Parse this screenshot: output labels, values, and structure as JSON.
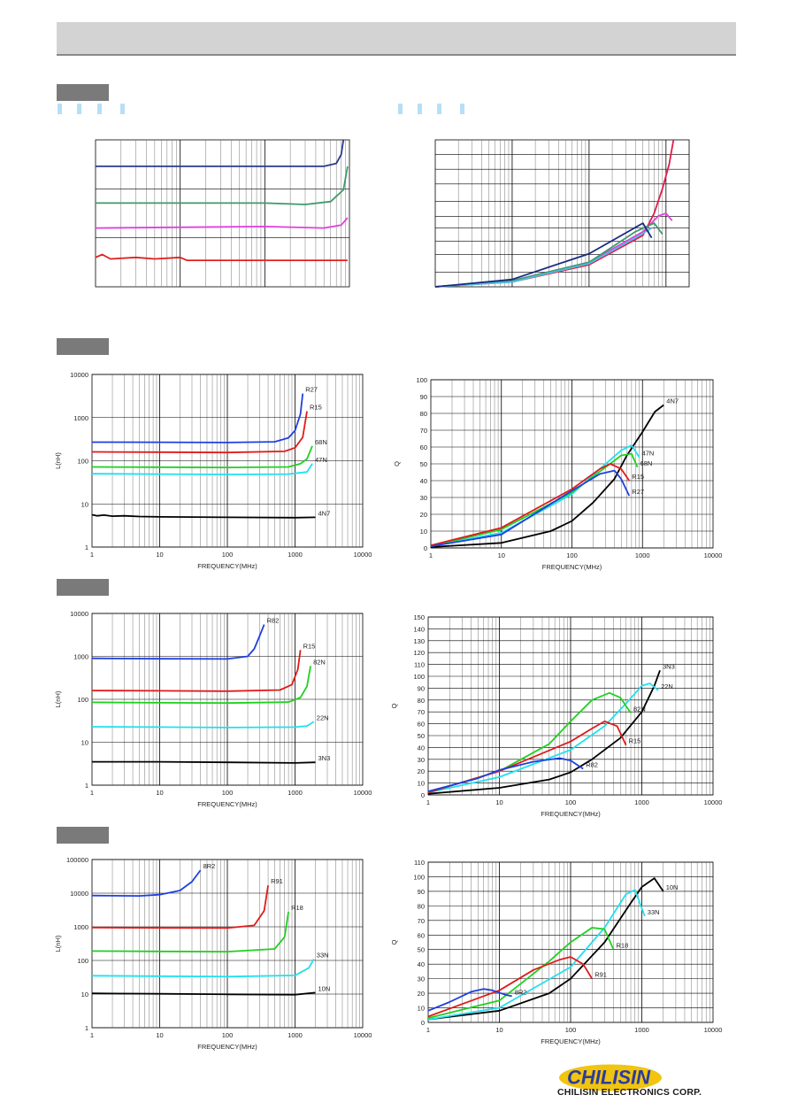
{
  "header": {},
  "brand": {
    "logo_text": "CHILISIN",
    "company": "CHILISIN ELECTRONICS CORP.",
    "colors": {
      "blue": "#2b3c9e",
      "yellow": "#f1c40f"
    }
  },
  "chart_data": [
    {
      "id": "c1",
      "type": "line",
      "title": "",
      "xlabel": "",
      "ylabel": "",
      "scale": "log-linear-grid",
      "series": [
        {
          "name": "",
          "color": "#2b3a8f",
          "x": [
            1,
            100,
            500,
            700,
            800,
            850
          ],
          "y": [
            0.82,
            0.82,
            0.82,
            0.84,
            0.9,
            1.0
          ]
        },
        {
          "name": "",
          "color": "#3d9a6b",
          "x": [
            1,
            100,
            300,
            600,
            850,
            950
          ],
          "y": [
            0.57,
            0.57,
            0.56,
            0.58,
            0.66,
            0.82
          ]
        },
        {
          "name": "",
          "color": "#e040e0",
          "x": [
            1,
            100,
            500,
            800,
            950
          ],
          "y": [
            0.4,
            0.41,
            0.4,
            0.42,
            0.47
          ]
        },
        {
          "name": "",
          "color": "#e02020",
          "x": [
            1,
            1.2,
            1.5,
            3,
            5,
            10,
            12,
            20,
            100,
            950
          ],
          "y": [
            0.2,
            0.22,
            0.19,
            0.2,
            0.19,
            0.2,
            0.18,
            0.18,
            0.18,
            0.18
          ]
        }
      ]
    },
    {
      "id": "c2",
      "type": "line",
      "title": "",
      "xlabel": "",
      "ylabel": "",
      "series": [
        {
          "name": "",
          "color": "#e31b4b",
          "x": [
            1,
            10,
            100,
            500,
            700,
            900,
            1100,
            1250
          ],
          "y": [
            0,
            4,
            18,
            42,
            60,
            80,
            100,
            120
          ]
        },
        {
          "name": "",
          "color": "#e040e0",
          "x": [
            1,
            10,
            100,
            500,
            800,
            1000,
            1200
          ],
          "y": [
            0,
            5,
            20,
            45,
            58,
            60,
            54
          ]
        },
        {
          "name": "",
          "color": "#3d9a6b",
          "x": [
            1,
            10,
            100,
            400,
            700,
            900
          ],
          "y": [
            0,
            5,
            20,
            45,
            52,
            43
          ]
        },
        {
          "name": "",
          "color": "#4ac0e0",
          "x": [
            1,
            10,
            100,
            400,
            650
          ],
          "y": [
            0,
            4,
            19,
            40,
            48
          ]
        },
        {
          "name": "",
          "color": "#1a2a80",
          "x": [
            1,
            10,
            100,
            300,
            500,
            650
          ],
          "y": [
            0,
            6,
            27,
            44,
            52,
            40
          ]
        }
      ]
    },
    {
      "id": "c3",
      "type": "line",
      "xlabel": "FREQUENCY(MHz)",
      "ylabel": "L(nH)",
      "xlim": [
        1,
        10000
      ],
      "ylim": [
        1,
        10000
      ],
      "yscale": "log",
      "x_ticks": [
        "1",
        "10",
        "100",
        "1000",
        "10000"
      ],
      "y_ticks": [
        "1",
        "10",
        "100",
        "1000",
        "10000"
      ],
      "series": [
        {
          "name": "R27",
          "color": "#1f3fe0",
          "x": [
            1,
            10,
            100,
            500,
            800,
            1000,
            1200,
            1300
          ],
          "y": [
            270,
            268,
            265,
            275,
            340,
            500,
            1200,
            3600
          ]
        },
        {
          "name": "R15",
          "color": "#e01a1a",
          "x": [
            1,
            10,
            100,
            700,
            1000,
            1300,
            1500
          ],
          "y": [
            160,
            158,
            155,
            165,
            200,
            350,
            1400
          ]
        },
        {
          "name": "68N",
          "color": "#20d020",
          "x": [
            1,
            10,
            100,
            800,
            1200,
            1500,
            1800
          ],
          "y": [
            72,
            71,
            70,
            72,
            85,
            110,
            220
          ]
        },
        {
          "name": "47N",
          "color": "#20e0f0",
          "x": [
            1,
            10,
            100,
            800,
            1500,
            1800
          ],
          "y": [
            50,
            49,
            48,
            49,
            55,
            85
          ]
        },
        {
          "name": "4N7",
          "color": "#000000",
          "x": [
            1,
            1.2,
            1.5,
            2,
            3,
            5,
            10,
            100,
            1000,
            2000
          ],
          "y": [
            5.6,
            5.3,
            5.5,
            5.2,
            5.3,
            5.1,
            5.0,
            4.9,
            4.8,
            4.9
          ]
        }
      ]
    },
    {
      "id": "c4",
      "type": "line",
      "xlabel": "FREQUENCY(MHz)",
      "ylabel": "Q",
      "xlim": [
        1,
        10000
      ],
      "ylim": [
        0,
        100
      ],
      "x_ticks": [
        "1",
        "10",
        "100",
        "1000",
        "10000"
      ],
      "y_ticks": [
        "0",
        "10",
        "20",
        "30",
        "40",
        "50",
        "60",
        "70",
        "80",
        "90",
        "100"
      ],
      "series": [
        {
          "name": "4N7",
          "color": "#000000",
          "x": [
            1,
            10,
            50,
            100,
            200,
            400,
            600,
            1000,
            1500,
            2000
          ],
          "y": [
            0.5,
            3,
            10,
            16,
            27,
            41,
            55,
            69,
            81,
            85
          ]
        },
        {
          "name": "47N",
          "color": "#20e0f0",
          "x": [
            1,
            10,
            100,
            300,
            500,
            700,
            900
          ],
          "y": [
            1,
            9,
            32,
            50,
            58,
            61,
            54
          ]
        },
        {
          "name": "68N",
          "color": "#20d020",
          "x": [
            1,
            10,
            100,
            300,
            500,
            700,
            850
          ],
          "y": [
            1,
            11,
            33,
            48,
            55,
            56,
            48
          ]
        },
        {
          "name": "R15",
          "color": "#e01a1a",
          "x": [
            1,
            10,
            100,
            250,
            350,
            500,
            650
          ],
          "y": [
            1.5,
            12,
            35,
            47,
            50,
            47,
            40
          ]
        },
        {
          "name": "R27",
          "color": "#1f3fe0",
          "x": [
            1,
            10,
            100,
            250,
            400,
            500,
            650
          ],
          "y": [
            1,
            8,
            34,
            44,
            46,
            41,
            31
          ]
        }
      ]
    },
    {
      "id": "c5",
      "type": "line",
      "xlabel": "FREQUENCY(MHz)",
      "ylabel": "L(nH)",
      "xlim": [
        1,
        10000
      ],
      "ylim": [
        1,
        10000
      ],
      "yscale": "log",
      "x_ticks": [
        "1",
        "10",
        "100",
        "1000",
        "10000"
      ],
      "y_ticks": [
        "1",
        "10",
        "100",
        "1000",
        "10000"
      ],
      "series": [
        {
          "name": "R82",
          "color": "#1f3fe0",
          "x": [
            1,
            10,
            100,
            200,
            250,
            300,
            350
          ],
          "y": [
            900,
            880,
            870,
            1000,
            1500,
            3000,
            5500
          ]
        },
        {
          "name": "R15",
          "color": "#e01a1a",
          "x": [
            1,
            10,
            100,
            600,
            900,
            1100,
            1200
          ],
          "y": [
            160,
            158,
            155,
            165,
            220,
            500,
            1400
          ]
        },
        {
          "name": "82N",
          "color": "#20d020",
          "x": [
            1,
            10,
            100,
            800,
            1200,
            1500,
            1700
          ],
          "y": [
            85,
            83,
            82,
            86,
            110,
            200,
            600
          ]
        },
        {
          "name": "22N",
          "color": "#20e0f0",
          "x": [
            1,
            10,
            100,
            1000,
            1500,
            1900
          ],
          "y": [
            23,
            22.5,
            22,
            22.5,
            24,
            30
          ]
        },
        {
          "name": "3N3",
          "color": "#000000",
          "x": [
            1,
            10,
            100,
            1000,
            2000
          ],
          "y": [
            3.5,
            3.5,
            3.4,
            3.3,
            3.4
          ]
        }
      ]
    },
    {
      "id": "c6",
      "type": "line",
      "xlabel": "FREQUENCY(MHz)",
      "ylabel": "Q",
      "xlim": [
        1,
        10000
      ],
      "ylim": [
        0,
        150
      ],
      "x_ticks": [
        "1",
        "10",
        "100",
        "1000",
        "10000"
      ],
      "y_ticks": [
        "0",
        "10",
        "20",
        "30",
        "40",
        "50",
        "60",
        "70",
        "80",
        "90",
        "100",
        "110",
        "120",
        "130",
        "140",
        "150"
      ],
      "series": [
        {
          "name": "3N3",
          "color": "#000000",
          "x": [
            1,
            10,
            50,
            100,
            200,
            500,
            1000,
            1500,
            1800
          ],
          "y": [
            1,
            6,
            13,
            19,
            30,
            48,
            70,
            92,
            105
          ]
        },
        {
          "name": "22N",
          "color": "#20e0f0",
          "x": [
            1,
            10,
            100,
            300,
            600,
            1000,
            1300,
            1700
          ],
          "y": [
            2,
            15,
            38,
            58,
            77,
            92,
            94,
            88
          ]
        },
        {
          "name": "82N",
          "color": "#20d020",
          "x": [
            1,
            10,
            50,
            100,
            200,
            350,
            500,
            700
          ],
          "y": [
            2,
            20,
            43,
            62,
            80,
            86,
            82,
            69
          ]
        },
        {
          "name": "R15",
          "color": "#e01a1a",
          "x": [
            1,
            10,
            100,
            200,
            300,
            450,
            600
          ],
          "y": [
            2,
            20,
            45,
            56,
            62,
            58,
            42
          ]
        },
        {
          "name": "R82",
          "color": "#1f3fe0",
          "x": [
            1,
            5,
            10,
            30,
            70,
            100,
            150
          ],
          "y": [
            3,
            14,
            21,
            28,
            31,
            29,
            22
          ]
        }
      ]
    },
    {
      "id": "c7",
      "type": "line",
      "xlabel": "FREQUENCY(MHz)",
      "ylabel": "L(nH)",
      "xlim": [
        1,
        10000
      ],
      "ylim": [
        1,
        100000
      ],
      "yscale": "log",
      "x_ticks": [
        "1",
        "10",
        "100",
        "1000",
        "10000"
      ],
      "y_ticks": [
        "1",
        "10",
        "100",
        "1000",
        "10000",
        "100000"
      ],
      "series": [
        {
          "name": "8R2",
          "color": "#1f3fe0",
          "x": [
            1,
            5,
            10,
            20,
            30,
            40
          ],
          "y": [
            8500,
            8300,
            9000,
            12000,
            22000,
            48000
          ]
        },
        {
          "name": "R91",
          "color": "#e01a1a",
          "x": [
            1,
            10,
            100,
            250,
            350,
            400
          ],
          "y": [
            950,
            930,
            920,
            1100,
            3000,
            17000
          ]
        },
        {
          "name": "R18",
          "color": "#20d020",
          "x": [
            1,
            10,
            100,
            500,
            700,
            800
          ],
          "y": [
            190,
            185,
            182,
            220,
            500,
            2800
          ]
        },
        {
          "name": "33N",
          "color": "#20e0f0",
          "x": [
            1,
            10,
            100,
            1000,
            1600,
            1900
          ],
          "y": [
            35,
            34,
            33,
            36,
            60,
            110
          ]
        },
        {
          "name": "10N",
          "color": "#000000",
          "x": [
            1,
            10,
            100,
            1000,
            2000
          ],
          "y": [
            10.5,
            10.2,
            9.8,
            9.6,
            11
          ]
        }
      ]
    },
    {
      "id": "c8",
      "type": "line",
      "xlabel": "FREQUENCY(MHz)",
      "ylabel": "Q",
      "xlim": [
        1,
        10000
      ],
      "ylim": [
        0,
        110
      ],
      "x_ticks": [
        "1",
        "10",
        "100",
        "1000",
        "10000"
      ],
      "y_ticks": [
        "0",
        "10",
        "20",
        "30",
        "40",
        "50",
        "60",
        "70",
        "80",
        "90",
        "100",
        "110"
      ],
      "series": [
        {
          "name": "10N",
          "color": "#000000",
          "x": [
            1,
            10,
            50,
            100,
            300,
            700,
            1000,
            1500,
            2000
          ],
          "y": [
            2,
            8,
            20,
            30,
            55,
            82,
            93,
            99,
            90
          ]
        },
        {
          "name": "33N",
          "color": "#20e0f0",
          "x": [
            1,
            10,
            100,
            300,
            600,
            800,
            1100
          ],
          "y": [
            2,
            10,
            38,
            65,
            88,
            91,
            73
          ]
        },
        {
          "name": "R18",
          "color": "#20d020",
          "x": [
            1,
            10,
            50,
            100,
            200,
            300,
            400
          ],
          "y": [
            3,
            15,
            42,
            55,
            65,
            64,
            50
          ]
        },
        {
          "name": "R91",
          "color": "#e01a1a",
          "x": [
            1,
            10,
            30,
            70,
            100,
            150,
            200
          ],
          "y": [
            4,
            22,
            36,
            43,
            45,
            40,
            30
          ]
        },
        {
          "name": "8R2",
          "color": "#1f3fe0",
          "x": [
            1,
            2,
            4,
            6,
            8,
            12,
            15
          ],
          "y": [
            8,
            14,
            21,
            23,
            22,
            19,
            18
          ]
        }
      ]
    }
  ]
}
